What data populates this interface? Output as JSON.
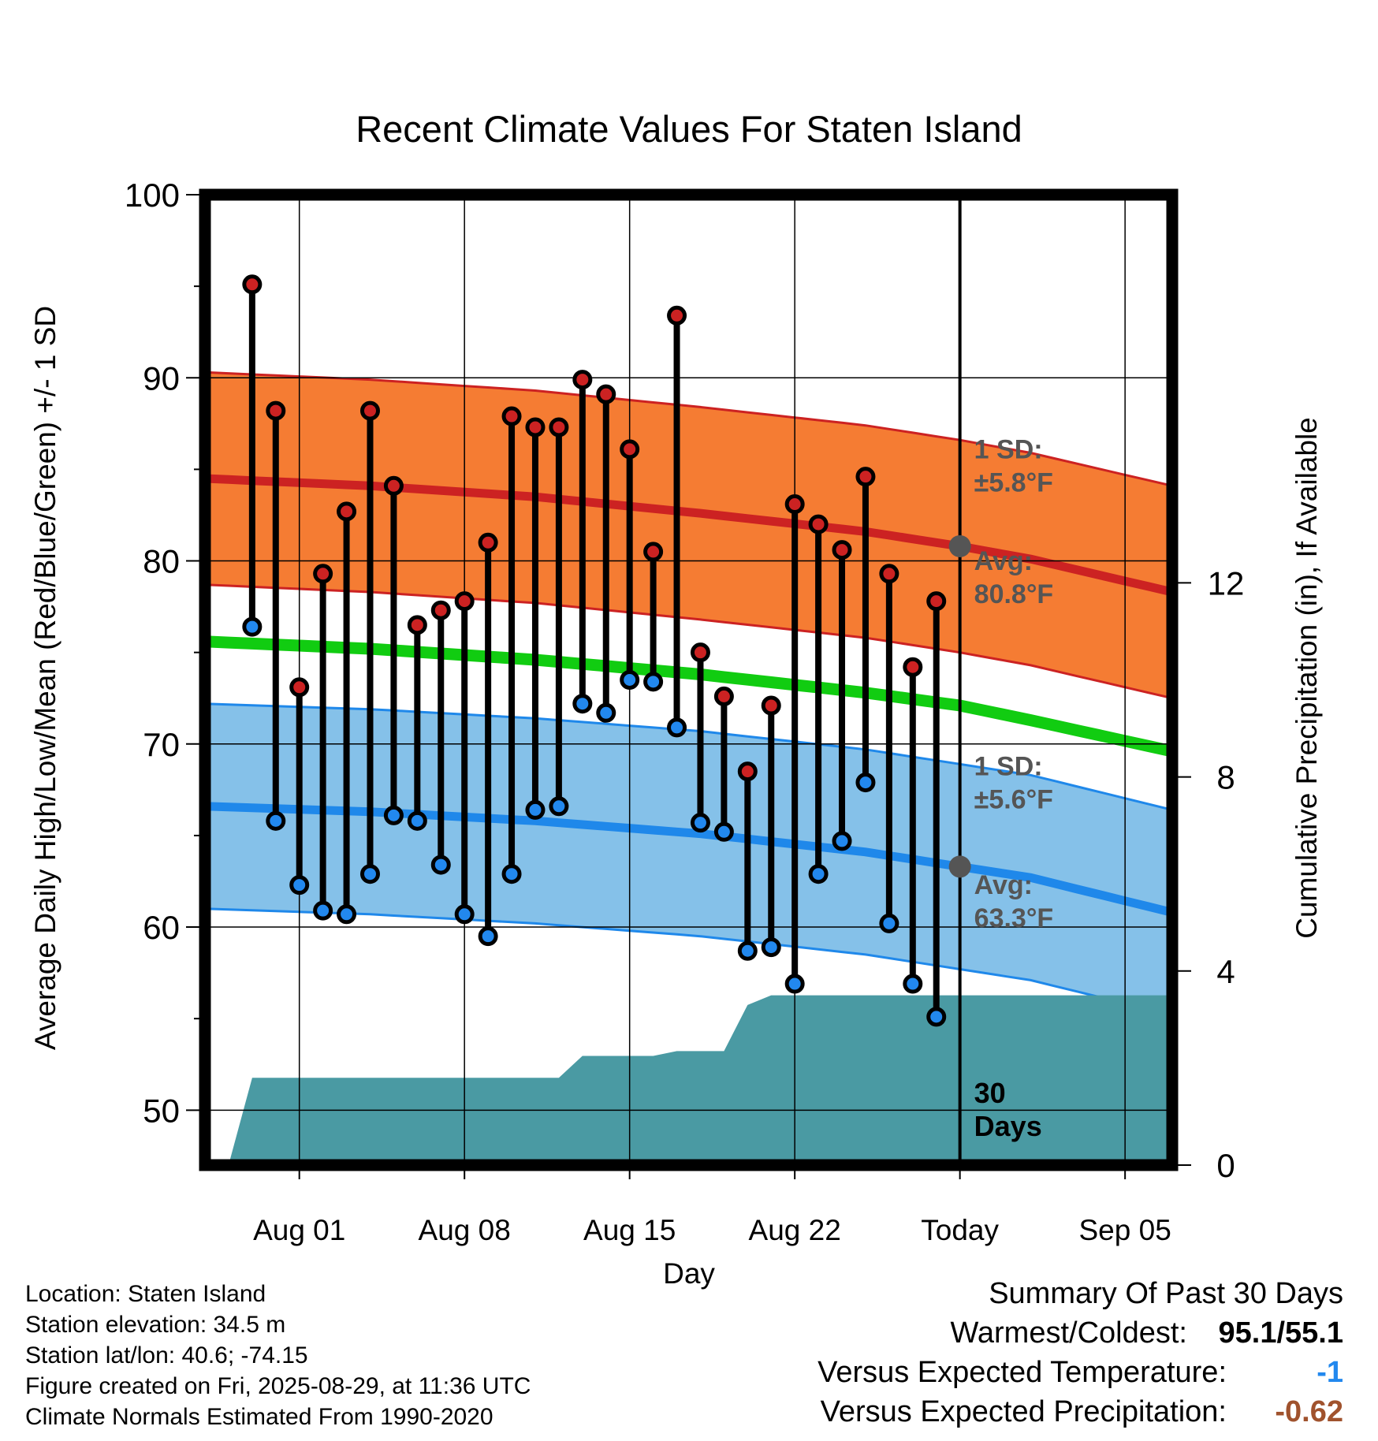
{
  "chart_data": {
    "type": "line",
    "title": "Recent Climate Values For Staten Island",
    "xlabel": "Day",
    "ylabel": "Average Daily High/Low/Mean (Red/Blue/Green) +/- 1 SD",
    "y2label": "Cumulative Precipitation (in), If Available",
    "ylim": [
      47,
      100
    ],
    "y_ticks": [
      50,
      60,
      70,
      80,
      90,
      100
    ],
    "y2lim": [
      0,
      20
    ],
    "y2_ticks": [
      0,
      4,
      8,
      12
    ],
    "xlim": [
      "2025-07-28",
      "2025-09-07"
    ],
    "x_ticks": [
      {
        "date": "2025-08-01",
        "label": "Aug 01"
      },
      {
        "date": "2025-08-08",
        "label": "Aug 08"
      },
      {
        "date": "2025-08-15",
        "label": "Aug 15"
      },
      {
        "date": "2025-08-22",
        "label": "Aug 22"
      },
      {
        "date": "2025-08-29",
        "label": "Today"
      },
      {
        "date": "2025-09-05",
        "label": "Sep 05"
      }
    ],
    "today": "2025-08-29",
    "grid": true,
    "normals": {
      "dates": [
        "2025-07-28",
        "2025-08-04",
        "2025-08-11",
        "2025-08-18",
        "2025-08-25",
        "2025-08-29",
        "2025-09-01",
        "2025-09-07"
      ],
      "high_mean": [
        84.5,
        84.1,
        83.5,
        82.6,
        81.6,
        80.8,
        80.1,
        78.3
      ],
      "high_sd": 5.8,
      "low_mean": [
        66.6,
        66.3,
        65.8,
        65.1,
        64.1,
        63.3,
        62.7,
        60.8
      ],
      "low_sd": 5.6,
      "mean": [
        75.6,
        75.2,
        74.6,
        73.8,
        72.8,
        72.1,
        71.3,
        69.6
      ]
    },
    "series": [
      {
        "name": "High",
        "color": "#cc2222",
        "dates": [
          "2025-07-30",
          "2025-07-31",
          "2025-08-01",
          "2025-08-02",
          "2025-08-03",
          "2025-08-04",
          "2025-08-05",
          "2025-08-06",
          "2025-08-07",
          "2025-08-08",
          "2025-08-09",
          "2025-08-10",
          "2025-08-11",
          "2025-08-12",
          "2025-08-13",
          "2025-08-14",
          "2025-08-15",
          "2025-08-16",
          "2025-08-17",
          "2025-08-18",
          "2025-08-19",
          "2025-08-20",
          "2025-08-21",
          "2025-08-22",
          "2025-08-23",
          "2025-08-24",
          "2025-08-25",
          "2025-08-26",
          "2025-08-27",
          "2025-08-28"
        ],
        "values": [
          95.1,
          88.2,
          73.1,
          79.3,
          82.7,
          88.2,
          84.1,
          76.5,
          77.3,
          77.8,
          81.0,
          87.9,
          87.3,
          87.3,
          89.9,
          89.1,
          86.1,
          80.5,
          93.4,
          75.0,
          72.6,
          68.5,
          72.1,
          83.1,
          82.0,
          80.6,
          84.6,
          79.3,
          74.2,
          77.8
        ]
      },
      {
        "name": "Low",
        "color": "#2288ee",
        "dates": [
          "2025-07-30",
          "2025-07-31",
          "2025-08-01",
          "2025-08-02",
          "2025-08-03",
          "2025-08-04",
          "2025-08-05",
          "2025-08-06",
          "2025-08-07",
          "2025-08-08",
          "2025-08-09",
          "2025-08-10",
          "2025-08-11",
          "2025-08-12",
          "2025-08-13",
          "2025-08-14",
          "2025-08-15",
          "2025-08-16",
          "2025-08-17",
          "2025-08-18",
          "2025-08-19",
          "2025-08-20",
          "2025-08-21",
          "2025-08-22",
          "2025-08-23",
          "2025-08-24",
          "2025-08-25",
          "2025-08-26",
          "2025-08-27",
          "2025-08-28"
        ],
        "values": [
          76.4,
          65.8,
          62.3,
          60.9,
          60.7,
          62.9,
          66.1,
          65.8,
          63.4,
          60.7,
          59.5,
          62.9,
          66.4,
          66.6,
          72.2,
          71.7,
          73.5,
          73.4,
          70.9,
          65.7,
          65.2,
          58.7,
          58.9,
          56.9,
          62.9,
          64.7,
          67.9,
          60.2,
          56.9,
          55.1
        ]
      },
      {
        "name": "Cumulative Precipitation",
        "color": "#4a9aa3",
        "dates": [
          "2025-07-29",
          "2025-07-30",
          "2025-07-31",
          "2025-08-01",
          "2025-08-12",
          "2025-08-13",
          "2025-08-16",
          "2025-08-17",
          "2025-08-19",
          "2025-08-20",
          "2025-08-21",
          "2025-09-07"
        ],
        "values": [
          0,
          1.8,
          1.8,
          1.8,
          1.8,
          2.25,
          2.25,
          2.35,
          2.35,
          3.3,
          3.5,
          3.5
        ]
      }
    ],
    "annotations": {
      "high_sd": [
        "1 SD:",
        "±5.8°F"
      ],
      "high_avg": [
        "Avg:",
        "80.8°F"
      ],
      "low_sd": [
        "1 SD:",
        "±5.6°F"
      ],
      "low_avg": [
        "Avg:",
        "63.3°F"
      ],
      "days": [
        "30",
        "Days"
      ]
    }
  },
  "footer": {
    "location": "Location: Staten Island",
    "elevation": "Station elevation: 34.5 m",
    "latlon": "Station lat/lon: 40.6; -74.15",
    "created": "Figure created on Fri, 2025-08-29, at 11:36 UTC",
    "normals": "Climate Normals Estimated From 1990-2020"
  },
  "summary": {
    "title": "Summary Of Past 30 Days",
    "warmest_coldest_label": "Warmest/Coldest:",
    "warmest_coldest_value": "95.1/55.1",
    "temp_label": "Versus Expected Temperature:",
    "temp_value": "-1",
    "temp_color": "#2288ee",
    "precip_label": "Versus Expected Precipitation:",
    "precip_value": "-0.62",
    "precip_color": "#a0522d"
  }
}
